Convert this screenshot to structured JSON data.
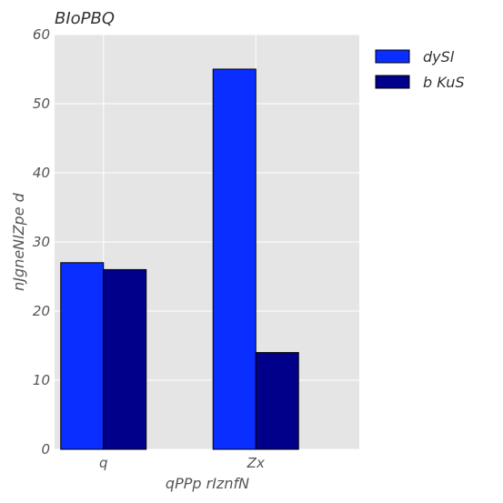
{
  "chart_data": {
    "type": "bar",
    "title": "BIoPBQ",
    "xlabel": "qPPp rIznfN",
    "ylabel": "nJgneNlZpe   d",
    "categories": [
      "q",
      "Zx"
    ],
    "series": [
      {
        "name": "dySl",
        "values": [
          27,
          55
        ],
        "color": "#0a2eff"
      },
      {
        "name": "b KuS",
        "values": [
          26,
          14
        ],
        "color": "#00008b"
      }
    ],
    "ylim": [
      0,
      60
    ],
    "yticks": [
      0,
      10,
      20,
      30,
      40,
      50,
      60
    ],
    "grid": true,
    "legend": "outside-top-right",
    "colors": {
      "plot_background": "#e5e5e5",
      "grid": "#ffffff",
      "bar_edge": "#000000"
    }
  }
}
